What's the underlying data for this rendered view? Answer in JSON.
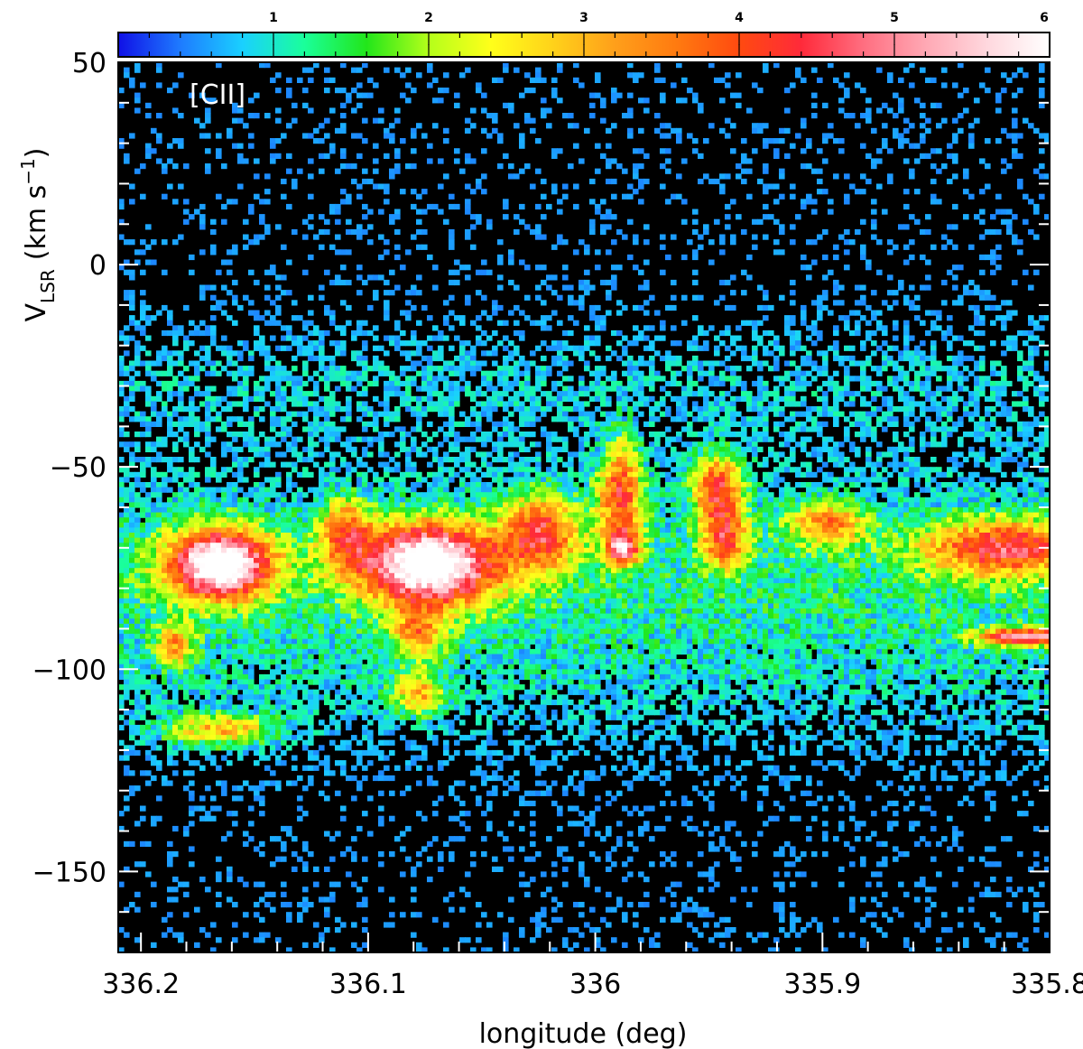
{
  "chart_data": {
    "type": "heatmap",
    "panel_label": "[CII]",
    "xlabel": "longitude (deg)",
    "ylabel_main": "V",
    "ylabel_sub": "LSR",
    "ylabel_units": "(km s",
    "ylabel_exp": "−1",
    "ylabel_close": ")",
    "xlim": [
      336.21,
      335.8
    ],
    "ylim": [
      -170,
      50
    ],
    "x_ticks": [
      {
        "value": 336.2,
        "label": "336.2"
      },
      {
        "value": 336.1,
        "label": "336.1"
      },
      {
        "value": 336.0,
        "label": "336"
      },
      {
        "value": 335.9,
        "label": "335.9"
      },
      {
        "value": 335.8,
        "label": "335.8"
      }
    ],
    "y_ticks": [
      {
        "value": 50,
        "label": "50"
      },
      {
        "value": 0,
        "label": "0"
      },
      {
        "value": -50,
        "label": "−50"
      },
      {
        "value": -100,
        "label": "−100"
      },
      {
        "value": -150,
        "label": "−150"
      }
    ],
    "colorbar": {
      "range": [
        0,
        6
      ],
      "ticks": [
        {
          "value": 1,
          "label": "1"
        },
        {
          "value": 2,
          "label": "2"
        },
        {
          "value": 3,
          "label": "3"
        },
        {
          "value": 4,
          "label": "4"
        },
        {
          "value": 5,
          "label": "5"
        },
        {
          "value": 6,
          "label": "6"
        }
      ],
      "colormap": [
        "#1010e6",
        "#1e7bff",
        "#1ad0ff",
        "#1aff9a",
        "#22e61a",
        "#b4ff1a",
        "#ffff1a",
        "#ffd21a",
        "#ff9f1a",
        "#ff7a10",
        "#ff4a10",
        "#ff2a3a",
        "#ff6e80",
        "#ffa8b4",
        "#ffd8de",
        "#ffffff"
      ]
    },
    "emission_features": [
      {
        "longitude": 336.165,
        "velocity": -74,
        "peak": 6.0,
        "dl": 0.016,
        "dv": 6
      },
      {
        "longitude": 336.073,
        "velocity": -74,
        "peak": 6.0,
        "dl": 0.021,
        "dv": 7
      },
      {
        "longitude": 336.024,
        "velocity": -66,
        "peak": 3.2,
        "dl": 0.012,
        "dv": 7
      },
      {
        "longitude": 335.989,
        "velocity": -56,
        "peak": 3.5,
        "dl": 0.007,
        "dv": 9
      },
      {
        "longitude": 335.988,
        "velocity": -70,
        "peak": 3.8,
        "dl": 0.005,
        "dv": 3
      },
      {
        "longitude": 335.946,
        "velocity": -55,
        "peak": 3.6,
        "dl": 0.008,
        "dv": 6
      },
      {
        "longitude": 335.943,
        "velocity": -68,
        "peak": 3.0,
        "dl": 0.007,
        "dv": 5
      },
      {
        "longitude": 335.898,
        "velocity": -64,
        "peak": 2.6,
        "dl": 0.012,
        "dv": 4
      },
      {
        "longitude": 335.82,
        "velocity": -70,
        "peak": 3.5,
        "dl": 0.025,
        "dv": 5
      },
      {
        "longitude": 335.81,
        "velocity": -92,
        "peak": 4.5,
        "dl": 0.015,
        "dv": 1.5
      },
      {
        "longitude": 336.165,
        "velocity": -115,
        "peak": 2.6,
        "dl": 0.018,
        "dv": 3
      },
      {
        "longitude": 336.078,
        "velocity": -106,
        "peak": 2.4,
        "dl": 0.008,
        "dv": 4
      },
      {
        "longitude": 336.11,
        "velocity": -66,
        "peak": 2.6,
        "dl": 0.008,
        "dv": 6
      },
      {
        "longitude": 336.185,
        "velocity": -94,
        "peak": 2.2,
        "dl": 0.006,
        "dv": 4
      },
      {
        "longitude": 336.078,
        "velocity": -91,
        "peak": 2.3,
        "dl": 0.008,
        "dv": 4
      }
    ]
  }
}
